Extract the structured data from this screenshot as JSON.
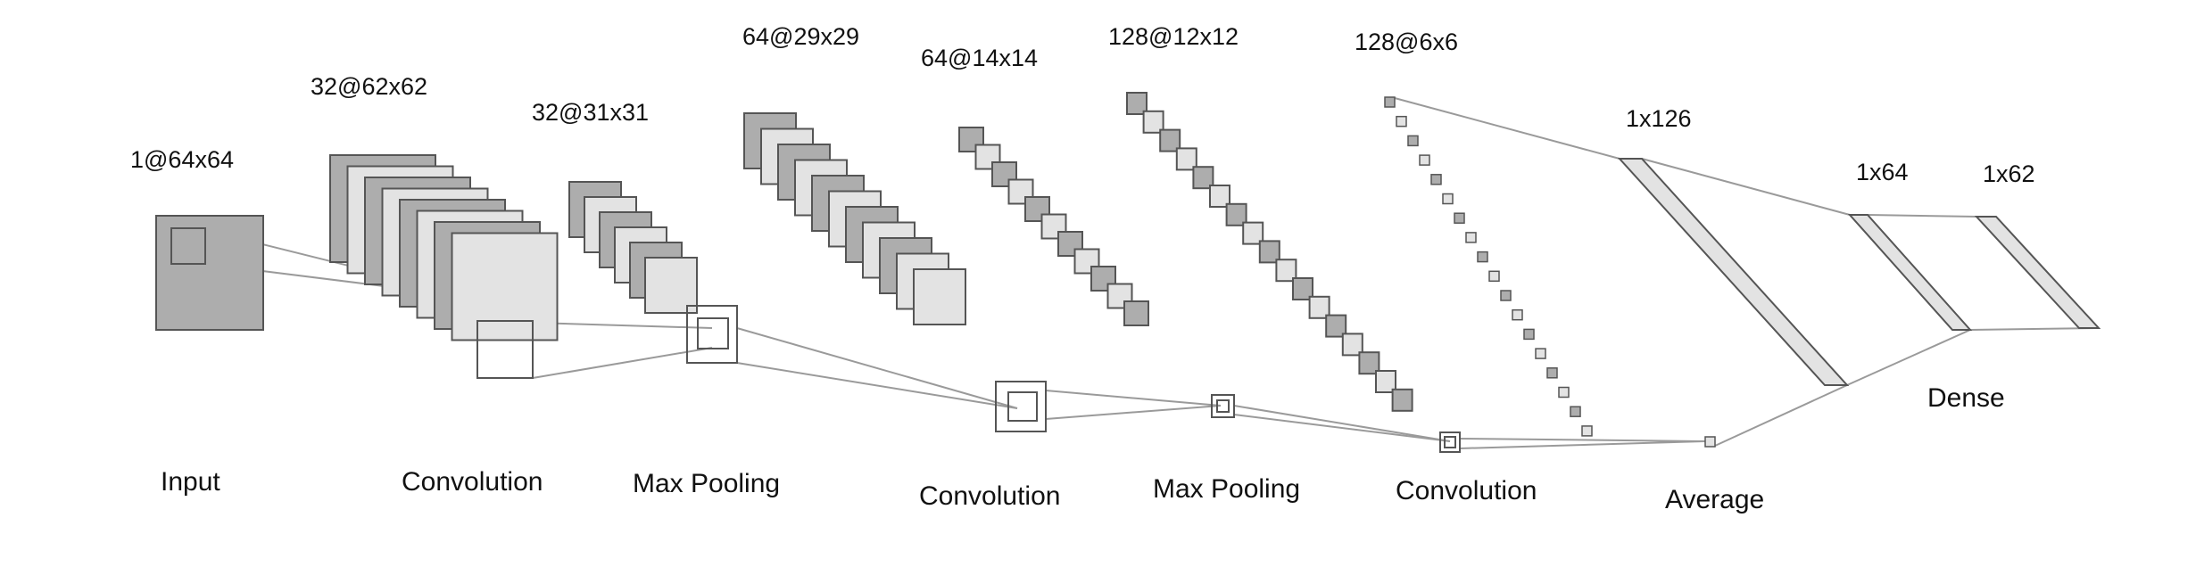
{
  "diagram": {
    "colors": {
      "dark_fill": "#adadad",
      "light_fill": "#e3e3e3",
      "stroke": "#555555",
      "connector": "#9a9a9a",
      "text": "#111111"
    },
    "dimensions": {
      "input": "1@64x64",
      "conv1": "32@62x62",
      "pool1": "32@31x31",
      "conv2": "64@29x29",
      "pool2": "64@14x14",
      "conv3": "128@12x12",
      "conv4": "128@6x6",
      "flat": "1x126",
      "dense1": "1x64",
      "dense2": "1x62"
    },
    "stage_labels": {
      "input": "Input",
      "conv1": "Convolution",
      "pool1": "Max Pooling",
      "conv2": "Convolution",
      "pool2": "Max Pooling",
      "conv3": "Convolution",
      "average": "Average",
      "dense": "Dense"
    }
  }
}
